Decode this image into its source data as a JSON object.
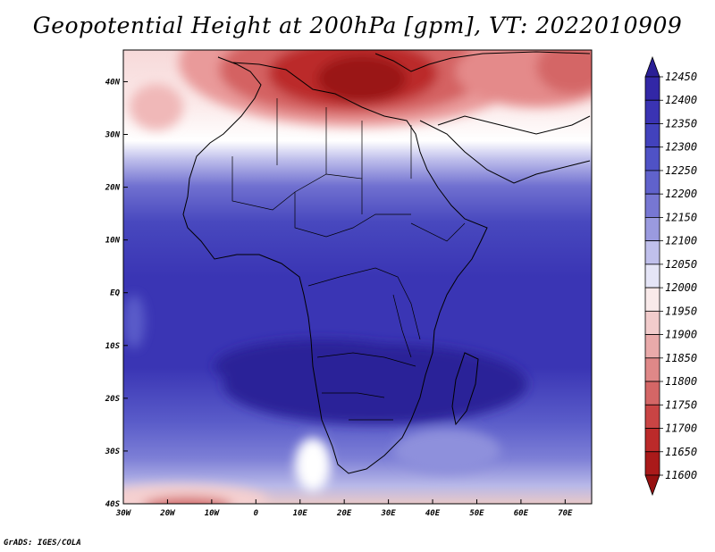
{
  "title": "Geopotential Height at 200hPa [gpm], VT: 2022010909",
  "credit": "GrADS: IGES/COLA",
  "map": {
    "lon_range": [
      -30,
      76
    ],
    "lat_range": [
      -40,
      46
    ],
    "lon_ticks": [
      "30W",
      "20W",
      "10W",
      "0",
      "10E",
      "20E",
      "30E",
      "40E",
      "50E",
      "60E",
      "70E"
    ],
    "lat_ticks": [
      "40S",
      "30S",
      "20S",
      "10S",
      "EQ",
      "10N",
      "20N",
      "30N",
      "40N"
    ],
    "lon_tick_values": [
      -30,
      -20,
      -10,
      0,
      10,
      20,
      30,
      40,
      50,
      60,
      70
    ],
    "lat_tick_values": [
      -40,
      -30,
      -20,
      -10,
      0,
      10,
      20,
      30,
      40
    ]
  },
  "colorbar": {
    "levels": [
      "12450",
      "12400",
      "12350",
      "12300",
      "12250",
      "12200",
      "12150",
      "12100",
      "12050",
      "12000",
      "11950",
      "11900",
      "11850",
      "11800",
      "11750",
      "11700",
      "11650",
      "11600"
    ],
    "colors": [
      "#2a1f96",
      "#3227a6",
      "#3a33b3",
      "#4242bd",
      "#4f52c6",
      "#6062cc",
      "#7777d3",
      "#9a9adf",
      "#c0c0ec",
      "#e5e5f7",
      "#f9eaea",
      "#f2cccc",
      "#e9aaaa",
      "#df8888",
      "#d46666",
      "#c94444",
      "#bb2a2a",
      "#aa1a1a",
      "#961010"
    ]
  }
}
